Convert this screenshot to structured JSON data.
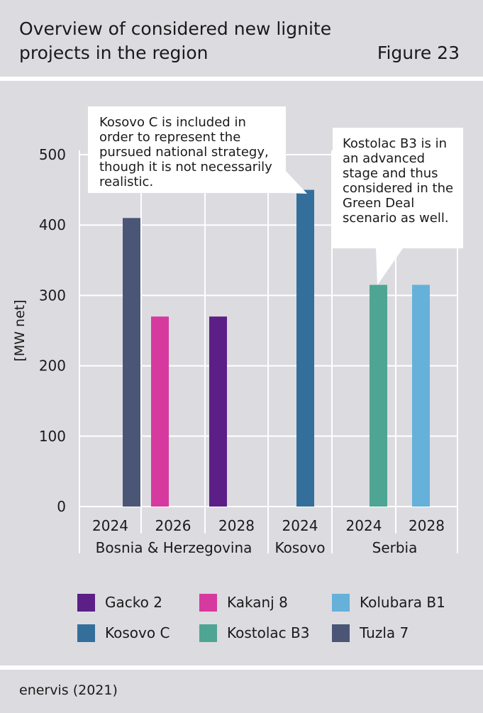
{
  "header": {
    "title": "Overview of considered new lignite projects in the region",
    "figure_label": "Figure 23"
  },
  "footer": {
    "source": "enervis (2021)"
  },
  "colors": {
    "background": "#dcdbe0",
    "Gacko 2": "#5c1f87",
    "Kakanj 8": "#d63a9e",
    "Kolubara B1": "#65b1d9",
    "Kosovo C": "#346f9b",
    "Kostolac B3": "#4ea593",
    "Tuzla 7": "#4b5677"
  },
  "callouts": {
    "kosovo": "Kosovo C is included in order to represent the pursued national strategy, though it is not necessarily realistic.",
    "kostolac": "Kostolac B3 is in an advanced stage and thus considered in the Green Deal scenario as well."
  },
  "chart_data": {
    "type": "bar",
    "ylabel": "[MW net]",
    "ylim": [
      0,
      500
    ],
    "yticks": [
      0,
      100,
      200,
      300,
      400,
      500
    ],
    "grid": true,
    "groups": [
      "Bosnia & Herzegovina",
      "Kosovo",
      "Serbia"
    ],
    "categories": [
      {
        "year": "2024",
        "group": "Bosnia & Herzegovina"
      },
      {
        "year": "2026",
        "group": "Bosnia & Herzegovina"
      },
      {
        "year": "2028",
        "group": "Bosnia & Herzegovina"
      },
      {
        "year": "2024",
        "group": "Kosovo"
      },
      {
        "year": "2024",
        "group": "Serbia"
      },
      {
        "year": "2028",
        "group": "Serbia"
      }
    ],
    "bars": [
      {
        "series": "Tuzla 7",
        "category": 0,
        "value": 410
      },
      {
        "series": "Kakanj 8",
        "category": 1,
        "value": 270
      },
      {
        "series": "Gacko 2",
        "category": 2,
        "value": 270
      },
      {
        "series": "Kosovo C",
        "category": 3,
        "value": 450
      },
      {
        "series": "Kostolac B3",
        "category": 4,
        "value": 315
      },
      {
        "series": "Kolubara B1",
        "category": 5,
        "value": 315
      }
    ],
    "legend": [
      "Gacko 2",
      "Kakanj 8",
      "Kolubara B1",
      "Kosovo C",
      "Kostolac B3",
      "Tuzla 7"
    ]
  }
}
